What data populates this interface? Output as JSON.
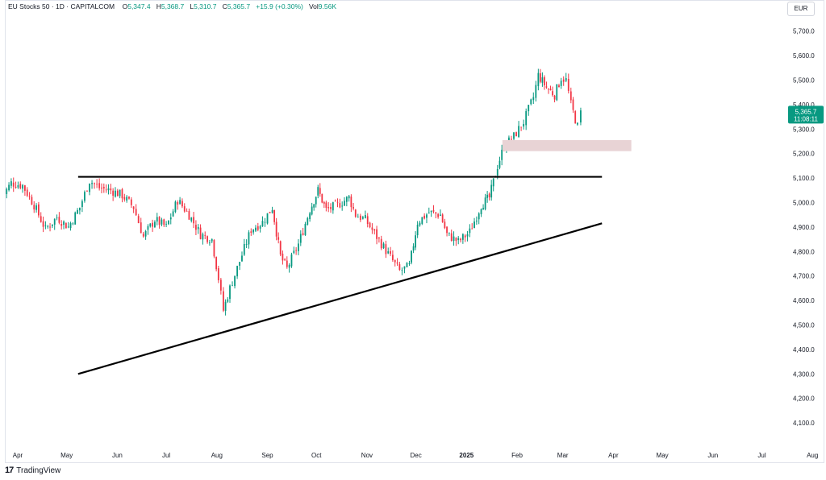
{
  "header": {
    "symbol": "EU Stocks 50 · 1D · CAPITALCOM",
    "o_label": "O",
    "o_value": "5,347.4",
    "h_label": "H",
    "h_value": "5,368.7",
    "l_label": "L",
    "l_value": "5,310.7",
    "c_label": "C",
    "c_value": "5,365.7",
    "change": "+15.9 (+0.30%)",
    "vol_label": "Vol",
    "vol_value": "9.56K"
  },
  "currency": "EUR",
  "price_tag": {
    "price": "5,365.7",
    "countdown": "11:08:11"
  },
  "footer": {
    "brand": "TradingView",
    "logo": "tv-logo-icon"
  },
  "colors": {
    "up": "#089981",
    "down": "#f23645",
    "line": "#000000",
    "zone": "#e8d3d5",
    "tag": "#089981"
  },
  "chart_data": {
    "type": "candlestick",
    "y_ticks": [
      "4,100.0",
      "4,200.0",
      "4,300.0",
      "4,400.0",
      "4,500.0",
      "4,600.0",
      "4,700.0",
      "4,800.0",
      "4,900.0",
      "5,000.0",
      "5,100.0",
      "5,200.0",
      "5,300.0",
      "5,400.0",
      "5,500.0",
      "5,600.0",
      "5,700.0"
    ],
    "ylim": [
      4050,
      5760
    ],
    "x_ticks": [
      {
        "label": "Apr",
        "date": "2024-04-01",
        "bold": false
      },
      {
        "label": "May",
        "date": "2024-05-01",
        "bold": false
      },
      {
        "label": "Jun",
        "date": "2024-06-01",
        "bold": false
      },
      {
        "label": "Jul",
        "date": "2024-07-01",
        "bold": false
      },
      {
        "label": "Aug",
        "date": "2024-08-01",
        "bold": false
      },
      {
        "label": "Sep",
        "date": "2024-09-01",
        "bold": false
      },
      {
        "label": "Oct",
        "date": "2024-10-01",
        "bold": false
      },
      {
        "label": "Nov",
        "date": "2024-11-01",
        "bold": false
      },
      {
        "label": "Dec",
        "date": "2024-12-01",
        "bold": false
      },
      {
        "label": "2025",
        "date": "2025-01-01",
        "bold": true
      },
      {
        "label": "Feb",
        "date": "2025-02-01",
        "bold": false
      },
      {
        "label": "Mar",
        "date": "2025-03-01",
        "bold": false
      },
      {
        "label": "Apr",
        "date": "2025-04-01",
        "bold": false
      },
      {
        "label": "May",
        "date": "2025-05-01",
        "bold": false
      },
      {
        "label": "Jun",
        "date": "2025-06-01",
        "bold": false
      },
      {
        "label": "Jul",
        "date": "2025-07-01",
        "bold": false
      },
      {
        "label": "Aug",
        "date": "2025-08-01",
        "bold": false
      }
    ],
    "close_path": [
      {
        "date": "2024-03-21",
        "close": 5010
      },
      {
        "date": "2024-03-28",
        "close": 5080
      },
      {
        "date": "2024-04-04",
        "close": 5070
      },
      {
        "date": "2024-04-11",
        "close": 4990
      },
      {
        "date": "2024-04-18",
        "close": 4890
      },
      {
        "date": "2024-04-25",
        "close": 4940
      },
      {
        "date": "2024-05-02",
        "close": 4900
      },
      {
        "date": "2024-05-09",
        "close": 4980
      },
      {
        "date": "2024-05-15",
        "close": 5090
      },
      {
        "date": "2024-05-21",
        "close": 5060
      },
      {
        "date": "2024-05-28",
        "close": 5050
      },
      {
        "date": "2024-06-04",
        "close": 5030
      },
      {
        "date": "2024-06-11",
        "close": 4980
      },
      {
        "date": "2024-06-17",
        "close": 4860
      },
      {
        "date": "2024-06-24",
        "close": 4930
      },
      {
        "date": "2024-07-01",
        "close": 4900
      },
      {
        "date": "2024-07-08",
        "close": 5010
      },
      {
        "date": "2024-07-15",
        "close": 4950
      },
      {
        "date": "2024-07-22",
        "close": 4870
      },
      {
        "date": "2024-07-29",
        "close": 4850
      },
      {
        "date": "2024-08-02",
        "close": 4690
      },
      {
        "date": "2024-08-05",
        "close": 4560
      },
      {
        "date": "2024-08-09",
        "close": 4650
      },
      {
        "date": "2024-08-15",
        "close": 4760
      },
      {
        "date": "2024-08-22",
        "close": 4890
      },
      {
        "date": "2024-08-29",
        "close": 4920
      },
      {
        "date": "2024-09-04",
        "close": 4980
      },
      {
        "date": "2024-09-09",
        "close": 4780
      },
      {
        "date": "2024-09-13",
        "close": 4730
      },
      {
        "date": "2024-09-20",
        "close": 4830
      },
      {
        "date": "2024-09-27",
        "close": 4970
      },
      {
        "date": "2024-10-02",
        "close": 5050
      },
      {
        "date": "2024-10-07",
        "close": 4970
      },
      {
        "date": "2024-10-14",
        "close": 4990
      },
      {
        "date": "2024-10-21",
        "close": 5020
      },
      {
        "date": "2024-10-25",
        "close": 4950
      },
      {
        "date": "2024-10-31",
        "close": 4930
      },
      {
        "date": "2024-11-07",
        "close": 4860
      },
      {
        "date": "2024-11-14",
        "close": 4790
      },
      {
        "date": "2024-11-21",
        "close": 4720
      },
      {
        "date": "2024-11-27",
        "close": 4740
      },
      {
        "date": "2024-12-02",
        "close": 4920
      },
      {
        "date": "2024-12-09",
        "close": 4960
      },
      {
        "date": "2024-12-16",
        "close": 4950
      },
      {
        "date": "2024-12-20",
        "close": 4870
      },
      {
        "date": "2024-12-27",
        "close": 4840
      },
      {
        "date": "2025-01-03",
        "close": 4880
      },
      {
        "date": "2025-01-10",
        "close": 4990
      },
      {
        "date": "2025-01-15",
        "close": 5020
      },
      {
        "date": "2025-01-20",
        "close": 5150
      },
      {
        "date": "2025-01-24",
        "close": 5230
      },
      {
        "date": "2025-01-30",
        "close": 5270
      },
      {
        "date": "2025-02-05",
        "close": 5330
      },
      {
        "date": "2025-02-11",
        "close": 5430
      },
      {
        "date": "2025-02-14",
        "close": 5520
      },
      {
        "date": "2025-02-19",
        "close": 5470
      },
      {
        "date": "2025-02-24",
        "close": 5440
      },
      {
        "date": "2025-02-28",
        "close": 5510
      },
      {
        "date": "2025-03-03",
        "close": 5500
      },
      {
        "date": "2025-03-06",
        "close": 5400
      },
      {
        "date": "2025-03-10",
        "close": 5310
      },
      {
        "date": "2025-03-12",
        "close": 5365.7
      }
    ],
    "trendlines": [
      {
        "name": "resistance",
        "from": {
          "date": "2024-05-08",
          "price": 5105
        },
        "to": {
          "date": "2025-03-25",
          "price": 5105
        }
      },
      {
        "name": "rising-support",
        "from": {
          "date": "2024-05-08",
          "price": 4300
        },
        "to": {
          "date": "2025-03-25",
          "price": 4915
        }
      }
    ],
    "zone": {
      "from_date": "2025-01-23",
      "to_date": "2025-04-12",
      "price_high": 5255,
      "price_low": 5210
    }
  }
}
